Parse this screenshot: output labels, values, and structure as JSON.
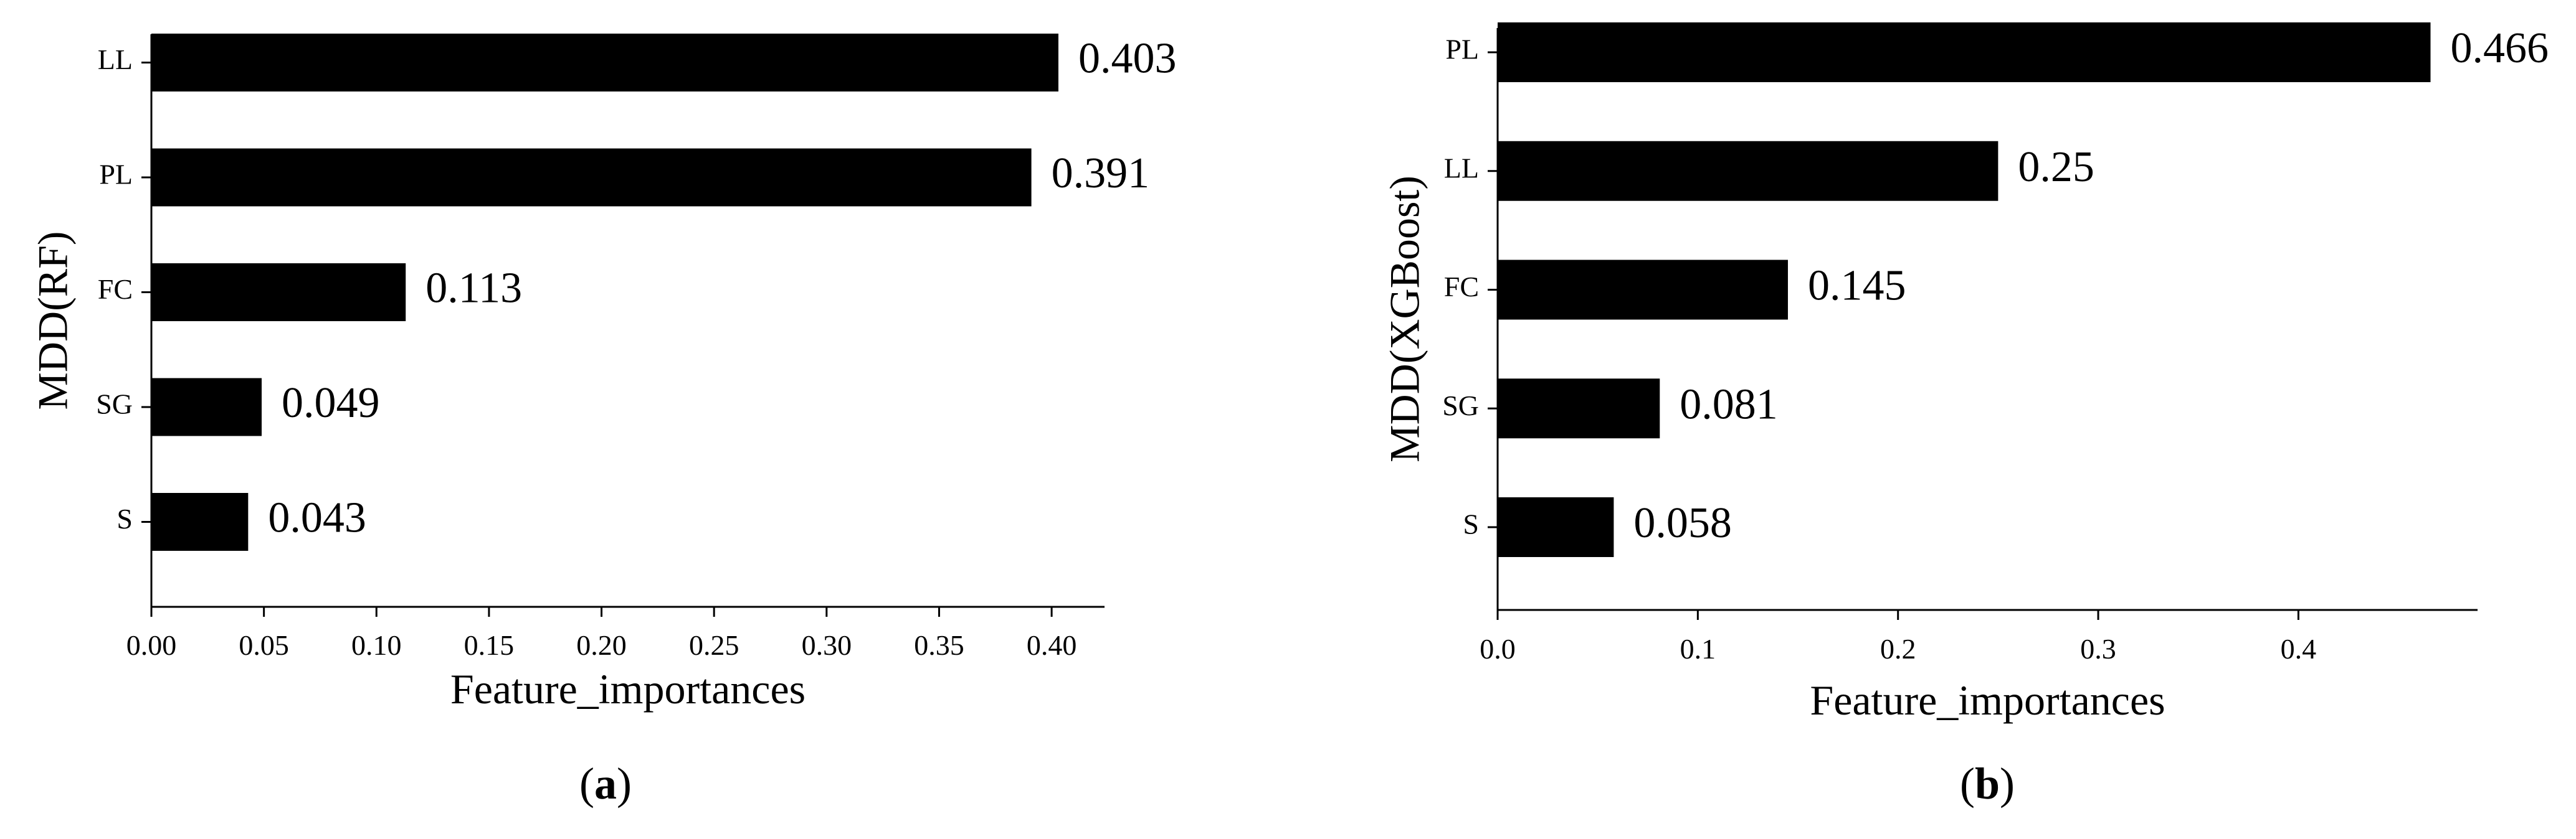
{
  "chart_data": [
    {
      "panel": "a",
      "type": "bar",
      "orientation": "horizontal",
      "categories": [
        "LL",
        "PL",
        "FC",
        "SG",
        "S"
      ],
      "values": [
        0.403,
        0.391,
        0.113,
        0.049,
        0.043
      ],
      "value_labels": [
        "0.403",
        "0.391",
        "0.113",
        "0.049",
        "0.043"
      ],
      "xlabel": "Feature_importances",
      "ylabel": "MDD(RF)",
      "xlim": [
        0,
        0.4235
      ],
      "xticks": [
        0,
        0.05,
        0.1,
        0.15,
        0.2,
        0.25,
        0.3,
        0.35,
        0.4
      ],
      "xtick_labels": [
        "0.00",
        "0.05",
        "0.10",
        "0.15",
        "0.20",
        "0.25",
        "0.30",
        "0.35",
        "0.40"
      ],
      "caption_letter": "a",
      "bar_color": "#000000"
    },
    {
      "panel": "b",
      "type": "bar",
      "orientation": "horizontal",
      "categories": [
        "PL",
        "LL",
        "FC",
        "SG",
        "S"
      ],
      "values": [
        0.466,
        0.25,
        0.145,
        0.081,
        0.058
      ],
      "value_labels": [
        "0.466",
        "0.25",
        "0.145",
        "0.081",
        "0.058"
      ],
      "xlabel": "Feature_importances",
      "ylabel": "MDD(XGBoost)",
      "xlim": [
        0,
        0.4895
      ],
      "xticks": [
        0,
        0.1,
        0.2,
        0.3,
        0.4
      ],
      "xtick_labels": [
        "0.0",
        "0.1",
        "0.2",
        "0.3",
        "0.4"
      ],
      "caption_letter": "b",
      "bar_color": "#000000"
    }
  ]
}
